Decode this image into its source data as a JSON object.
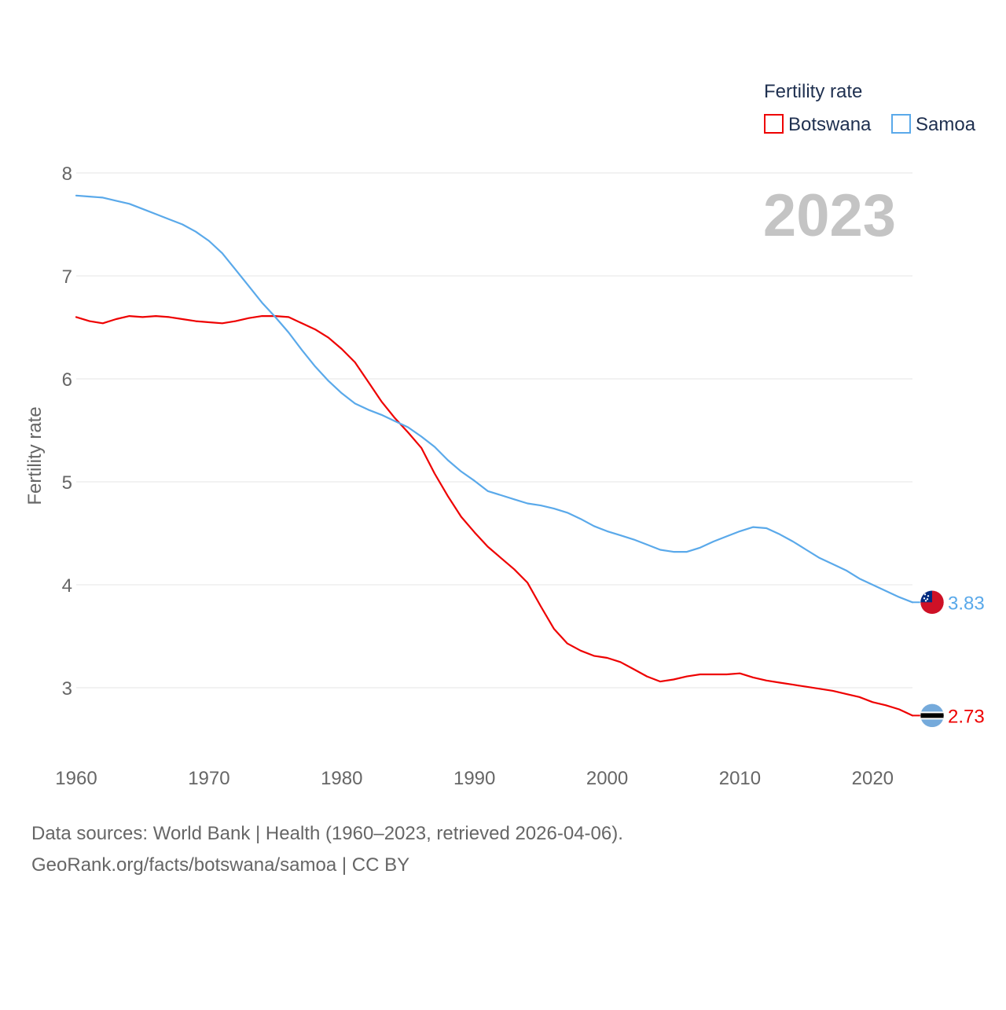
{
  "chart_data": {
    "type": "line",
    "title": "",
    "ylabel": "Fertility rate",
    "xlabel": "",
    "xlim": [
      1960,
      2023
    ],
    "ylim": [
      2.5,
      8
    ],
    "x_ticks": [
      1960,
      1970,
      1980,
      1990,
      2000,
      2010,
      2020
    ],
    "y_ticks": [
      3,
      4,
      5,
      6,
      7,
      8
    ],
    "grid": true,
    "legend": {
      "title": "Fertility rate",
      "position": "top-right"
    },
    "year_label": "2023",
    "x": [
      1960,
      1961,
      1962,
      1963,
      1964,
      1965,
      1966,
      1967,
      1968,
      1969,
      1970,
      1971,
      1972,
      1973,
      1974,
      1975,
      1976,
      1977,
      1978,
      1979,
      1980,
      1981,
      1982,
      1983,
      1984,
      1985,
      1986,
      1987,
      1988,
      1989,
      1990,
      1991,
      1992,
      1993,
      1994,
      1995,
      1996,
      1997,
      1998,
      1999,
      2000,
      2001,
      2002,
      2003,
      2004,
      2005,
      2006,
      2007,
      2008,
      2009,
      2010,
      2011,
      2012,
      2013,
      2014,
      2015,
      2016,
      2017,
      2018,
      2019,
      2020,
      2021,
      2022,
      2023
    ],
    "series": [
      {
        "name": "Botswana",
        "color": "#ee0000",
        "end_label": "2.73",
        "flag": "botswana-flag-icon",
        "values": [
          6.6,
          6.56,
          6.54,
          6.58,
          6.61,
          6.6,
          6.61,
          6.6,
          6.58,
          6.56,
          6.55,
          6.54,
          6.56,
          6.59,
          6.61,
          6.61,
          6.6,
          6.54,
          6.48,
          6.4,
          6.29,
          6.16,
          5.97,
          5.78,
          5.62,
          5.48,
          5.33,
          5.08,
          4.86,
          4.66,
          4.51,
          4.37,
          4.26,
          4.15,
          4.02,
          3.79,
          3.57,
          3.43,
          3.36,
          3.31,
          3.29,
          3.25,
          3.18,
          3.11,
          3.06,
          3.08,
          3.11,
          3.13,
          3.13,
          3.13,
          3.14,
          3.1,
          3.07,
          3.05,
          3.03,
          3.01,
          2.99,
          2.97,
          2.94,
          2.91,
          2.86,
          2.83,
          2.79,
          2.73
        ]
      },
      {
        "name": "Samoa",
        "color": "#5aa9ea",
        "end_label": "3.83",
        "flag": "samoa-flag-icon",
        "values": [
          7.78,
          7.77,
          7.76,
          7.73,
          7.7,
          7.65,
          7.6,
          7.55,
          7.5,
          7.43,
          7.34,
          7.22,
          7.06,
          6.9,
          6.74,
          6.6,
          6.45,
          6.28,
          6.12,
          5.98,
          5.86,
          5.76,
          5.7,
          5.65,
          5.59,
          5.53,
          5.44,
          5.34,
          5.21,
          5.1,
          5.01,
          4.91,
          4.87,
          4.83,
          4.79,
          4.77,
          4.74,
          4.7,
          4.64,
          4.57,
          4.52,
          4.48,
          4.44,
          4.39,
          4.34,
          4.32,
          4.32,
          4.36,
          4.42,
          4.47,
          4.52,
          4.56,
          4.55,
          4.49,
          4.42,
          4.34,
          4.26,
          4.2,
          4.14,
          4.06,
          4.0,
          3.94,
          3.88,
          3.83
        ]
      }
    ],
    "source": {
      "line1": "Data sources: World Bank | Health (1960–2023, retrieved 2026-04-06).",
      "line2": "GeoRank.org/facts/botswana/samoa | CC BY"
    }
  }
}
